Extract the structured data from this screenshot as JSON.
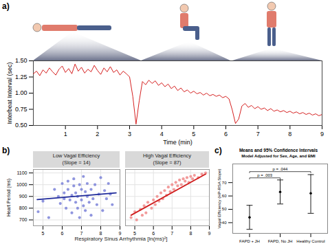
{
  "chart_data": [
    {
      "type": "line",
      "panel_label": "a)",
      "xlabel": "Time (min)",
      "ylabel": "Interbeat Interval (sec)",
      "xlim": [
        0,
        9
      ],
      "xticks": [
        1,
        2,
        3,
        4,
        5,
        6,
        7,
        8,
        9
      ],
      "ylim": [
        0.5,
        1.5
      ],
      "yticks": [
        {
          "value": 0.5,
          "label": "0.50"
        },
        {
          "value": 0.75,
          "label": "0.75"
        },
        {
          "value": 1,
          "label": "1.00"
        },
        {
          "value": 1.25,
          "label": "1.25"
        },
        {
          "value": 1.5,
          "label": "1.50"
        }
      ],
      "grid": false,
      "x": [
        0,
        0.1,
        0.2,
        0.3,
        0.4,
        0.5,
        0.6,
        0.7,
        0.8,
        0.9,
        1,
        1.1,
        1.2,
        1.3,
        1.4,
        1.5,
        1.6,
        1.7,
        1.8,
        1.9,
        2,
        2.1,
        2.2,
        2.3,
        2.4,
        2.5,
        2.6,
        2.7,
        2.8,
        2.9,
        3,
        3.1,
        3.2,
        3.3,
        3.4,
        3.5,
        3.6,
        3.7,
        3.8,
        3.9,
        4,
        4.1,
        4.2,
        4.3,
        4.4,
        4.5,
        4.6,
        4.7,
        4.8,
        4.9,
        5,
        5.1,
        5.2,
        5.3,
        5.4,
        5.5,
        5.6,
        5.7,
        5.8,
        5.9,
        6,
        6.1,
        6.2,
        6.3,
        6.4,
        6.5,
        6.6,
        6.7,
        6.8,
        6.9,
        7,
        7.1,
        7.2,
        7.3,
        7.4,
        7.5,
        7.6,
        7.7,
        7.8,
        7.9,
        8,
        8.1,
        8.2,
        8.3,
        8.4,
        8.5,
        8.6,
        8.7,
        8.8,
        8.9,
        9
      ],
      "series": [
        {
          "color": "#d62020",
          "values": [
            1.3,
            1.34,
            1.27,
            1.36,
            1.31,
            1.39,
            1.33,
            1.28,
            1.37,
            1.42,
            1.32,
            1.38,
            1.3,
            1.45,
            1.34,
            1.4,
            1.31,
            1.37,
            1.33,
            1.43,
            1.35,
            1.29,
            1.39,
            1.33,
            1.41,
            1.32,
            1.36,
            1.28,
            1.34,
            1.3,
            1.25,
            0.95,
            0.52,
            0.88,
            1.18,
            1.13,
            1.2,
            1.15,
            1.19,
            1.12,
            1.16,
            1.1,
            1.14,
            1.07,
            1.11,
            1.04,
            1.08,
            1.02,
            1.05,
            1.0,
            1.03,
            0.99,
            1.01,
            0.97,
            1.0,
            0.96,
            0.98,
            0.95,
            0.97,
            0.93,
            0.95,
            0.91,
            0.74,
            0.53,
            0.6,
            0.8,
            0.84,
            0.78,
            0.81,
            0.76,
            0.79,
            0.75,
            0.77,
            0.73,
            0.76,
            0.72,
            0.74,
            0.71,
            0.73,
            0.7,
            0.72,
            0.69,
            0.71,
            0.68,
            0.7,
            0.67,
            0.69,
            0.66,
            0.68,
            0.65,
            0.67
          ]
        }
      ]
    },
    {
      "type": "scatter",
      "panel_label": "b)",
      "xlabel": "Respiratory Sinus Arrhythmia [ln(ms)²]",
      "ylabel": "Heart Period (ms)",
      "xlim": [
        4.5,
        9
      ],
      "xticks": [
        5,
        6,
        7,
        8,
        9
      ],
      "ylim": [
        650,
        1130
      ],
      "yticks": [
        700,
        800,
        900,
        1000,
        1100
      ],
      "grid": true,
      "panels": [
        {
          "title": "Low Vagal Efficiency",
          "subtitle": "(Slope = 14)",
          "color": "#7b83d8",
          "points": {
            "x": [
              4.75,
              5.0,
              5.3,
              5.6,
              5.8,
              5.9,
              6.0,
              6.1,
              6.1,
              6.2,
              6.3,
              6.3,
              6.4,
              6.5,
              6.5,
              6.6,
              6.6,
              6.7,
              6.7,
              6.8,
              6.8,
              6.9,
              6.9,
              7.0,
              7.0,
              7.1,
              7.1,
              7.2,
              7.2,
              7.3,
              7.3,
              7.4,
              7.5,
              7.5,
              7.6,
              7.7,
              7.8,
              7.9,
              8.0,
              8.1,
              8.2,
              8.3,
              8.4,
              8.5,
              8.6
            ],
            "y": [
              770,
              860,
              720,
              960,
              900,
              840,
              1010,
              930,
              880,
              800,
              960,
              1030,
              870,
              910,
              760,
              990,
              1050,
              850,
              930,
              800,
              900,
              1000,
              720,
              960,
              870,
              1070,
              820,
              940,
              780,
              900,
              1010,
              850,
              960,
              740,
              880,
              1000,
              830,
              920,
              1060,
              780,
              950,
              880,
              1010,
              920,
              830
            ]
          },
          "fit": {
            "x": [
              4.7,
              8.8
            ],
            "y": [
              873,
              930
            ],
            "color": "#1f2a9a"
          }
        },
        {
          "title": "High Vagal Efficiency",
          "subtitle": "(Slope = 87)",
          "color": "#f08a8a",
          "points": {
            "x": [
              4.8,
              5.0,
              5.1,
              5.3,
              5.4,
              5.5,
              5.6,
              5.7,
              5.9,
              6.0,
              6.1,
              6.2,
              6.3,
              6.4,
              6.5,
              6.6,
              6.7,
              6.8,
              6.9,
              7.0,
              7.1,
              7.2,
              7.3,
              7.4,
              7.5,
              7.6,
              7.7,
              7.8,
              7.9,
              8.0,
              8.1,
              8.2,
              8.4,
              8.6,
              8.8
            ],
            "y": [
              720,
              770,
              700,
              790,
              740,
              820,
              760,
              850,
              800,
              870,
              830,
              900,
              860,
              930,
              880,
              950,
              910,
              980,
              940,
              1000,
              960,
              1020,
              990,
              1040,
              1000,
              1050,
              1030,
              1060,
              1020,
              1070,
              1050,
              1080,
              1060,
              1090,
              1100
            ]
          },
          "fit": {
            "x": [
              4.8,
              8.8
            ],
            "y": [
              740,
              1090
            ],
            "color": "#d01c1c"
          }
        }
      ]
    },
    {
      "type": "errorbar",
      "panel_label": "c)",
      "title": "Means and 95% Confidence Intervals",
      "subtitle": "Model Adjusted for Sex, Age, and BMI",
      "ylabel": "Vagal Efficiency (HP-RSA Slope)",
      "categories": [
        "FAPD + JH",
        "FAPD, No JH",
        "Healthy Control"
      ],
      "values": [
        44,
        63,
        62
      ],
      "ci_lower": [
        35,
        54,
        47
      ],
      "ci_upper": [
        53,
        72,
        76
      ],
      "ylim": [
        32,
        84
      ],
      "yticks": [
        40,
        50,
        60,
        70
      ],
      "color": "#000000",
      "annotations": [
        {
          "from": "FAPD + JH",
          "to": "FAPD, No JH",
          "text": "p = .003"
        },
        {
          "from": "FAPD + JH",
          "to": "Healthy Control",
          "text": "p = .044"
        }
      ]
    }
  ]
}
